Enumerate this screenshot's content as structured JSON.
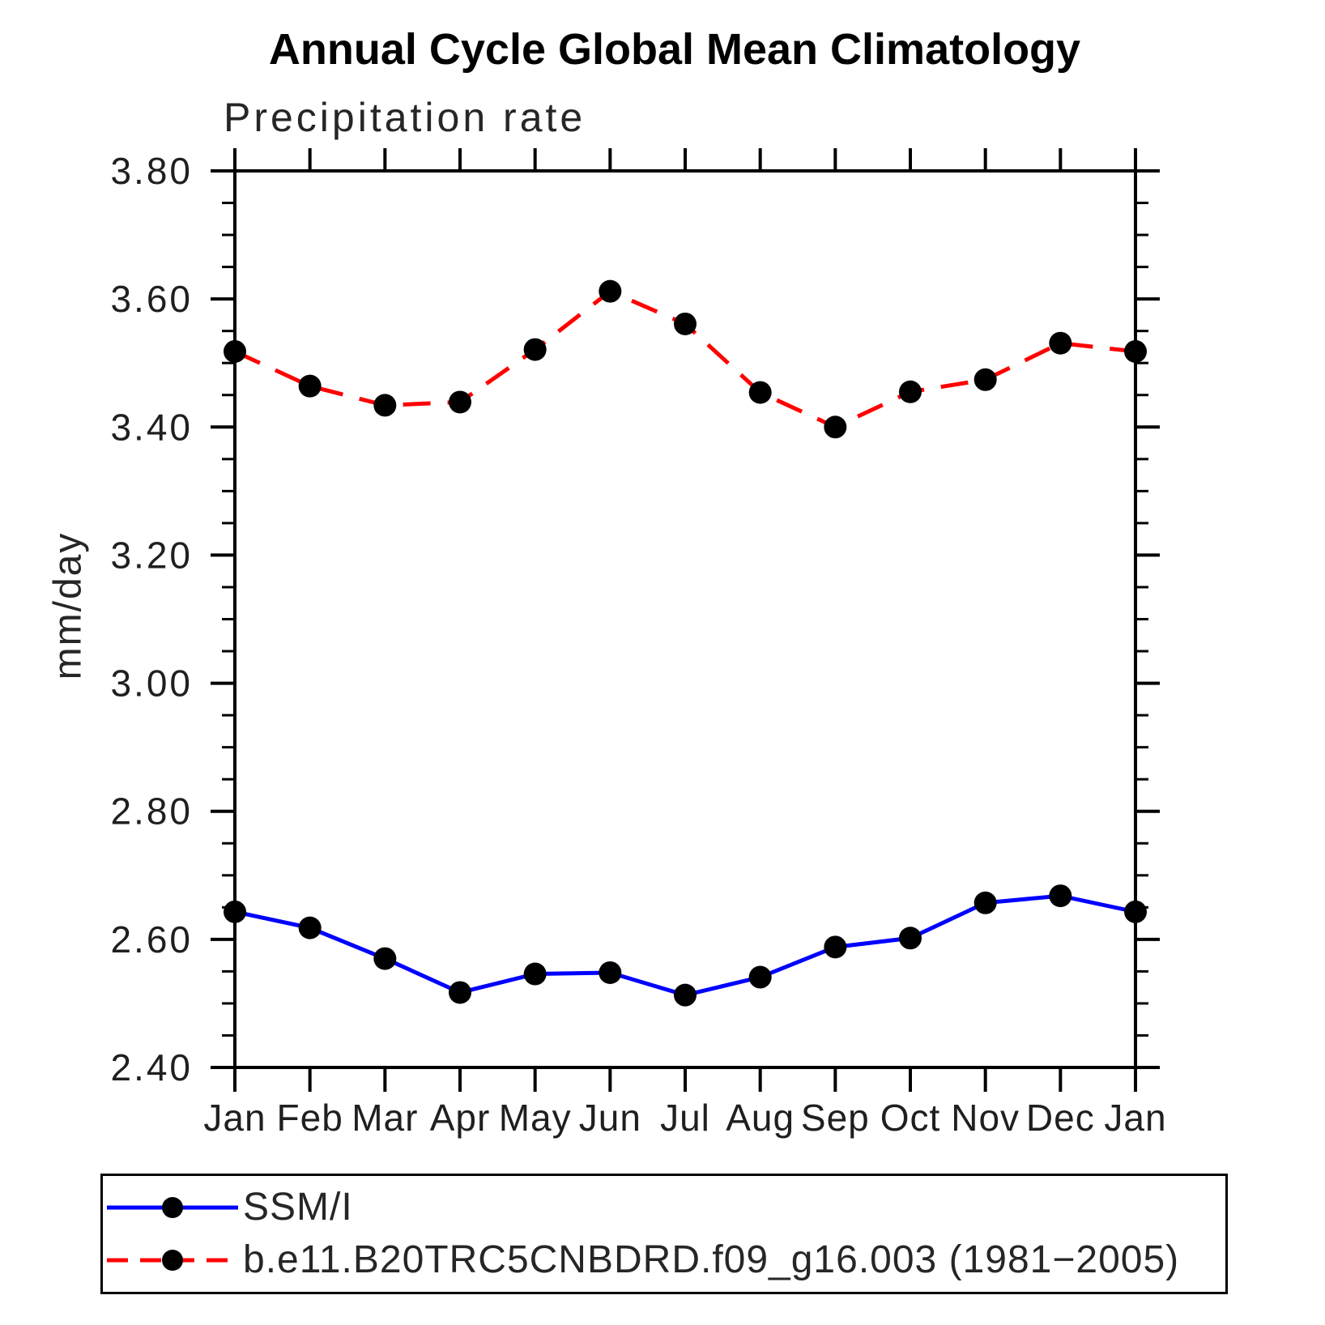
{
  "title": "Annual Cycle Global Mean Climatology",
  "subtitle": "Precipitation rate",
  "ylabel": "mm/day",
  "chart_data": {
    "type": "line",
    "title": "Annual Cycle Global Mean Climatology",
    "subtitle": "Precipitation rate",
    "xlabel": "",
    "ylabel": "mm/day",
    "x_categories": [
      "Jan",
      "Feb",
      "Mar",
      "Apr",
      "May",
      "Jun",
      "Jul",
      "Aug",
      "Sep",
      "Oct",
      "Nov",
      "Dec",
      "Jan"
    ],
    "ylim": [
      2.4,
      3.8
    ],
    "ytick_major_interval": 0.2,
    "ytick_minor_interval": 0.05,
    "ytick_labels": [
      "3.80",
      "3.60",
      "3.40",
      "3.20",
      "3.00",
      "2.80",
      "2.60",
      "2.40"
    ],
    "grid": false,
    "legend_position": "bottom-left-box",
    "frame_color": "#000000",
    "series": [
      {
        "name": "SSM/I",
        "color": "#0000ff",
        "line_style": "solid",
        "marker": "filled-circle",
        "marker_color": "#000000",
        "values": [
          2.643,
          2.618,
          2.57,
          2.517,
          2.546,
          2.548,
          2.513,
          2.541,
          2.588,
          2.602,
          2.657,
          2.668,
          2.643
        ]
      },
      {
        "name": "b.e11.B20TRC5CNBDRD.f09_g16.003 (1981−2005)",
        "color": "#ff0000",
        "line_style": "dashed",
        "marker": "filled-circle",
        "marker_color": "#000000",
        "values": [
          3.518,
          3.464,
          3.434,
          3.439,
          3.521,
          3.612,
          3.561,
          3.454,
          3.4,
          3.455,
          3.474,
          3.531,
          3.518
        ]
      }
    ]
  },
  "legend": {
    "entries": [
      {
        "label": "SSM/I"
      },
      {
        "label": "b.e11.B20TRC5CNBDRD.f09_g16.003 (1981−2005)"
      }
    ]
  }
}
